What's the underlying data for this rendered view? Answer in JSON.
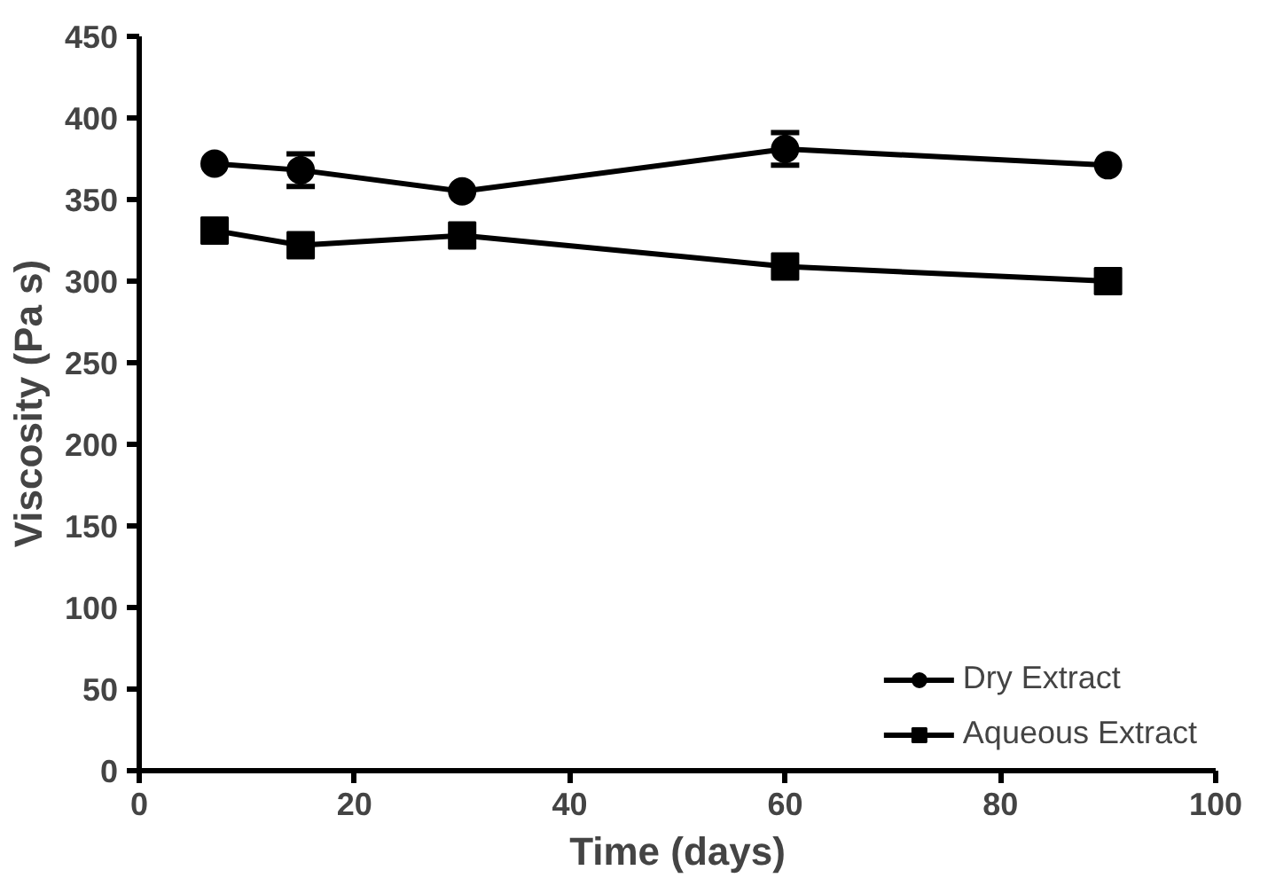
{
  "chart_data": {
    "type": "line",
    "xlabel": "Time (days)",
    "ylabel": "Viscosity (Pa s)",
    "xlim": [
      0,
      100
    ],
    "ylim": [
      0,
      450
    ],
    "xticks": [
      0,
      20,
      40,
      60,
      80,
      100
    ],
    "yticks": [
      0,
      50,
      100,
      150,
      200,
      250,
      300,
      350,
      400,
      450
    ],
    "grid": false,
    "legend": "bottom right",
    "line_style": "solid",
    "series": [
      {
        "name": "Dry Extract",
        "color": "#000000",
        "marker": "circle",
        "x": [
          7,
          15,
          30,
          60,
          90
        ],
        "values": [
          372,
          368,
          355,
          381,
          371
        ],
        "errors": [
          null,
          10,
          null,
          10,
          null
        ]
      },
      {
        "name": "Aqueous Extract",
        "color": "#000000",
        "marker": "square",
        "x": [
          7,
          15,
          30,
          60,
          90
        ],
        "values": [
          331,
          322,
          328,
          309,
          300
        ]
      }
    ]
  }
}
